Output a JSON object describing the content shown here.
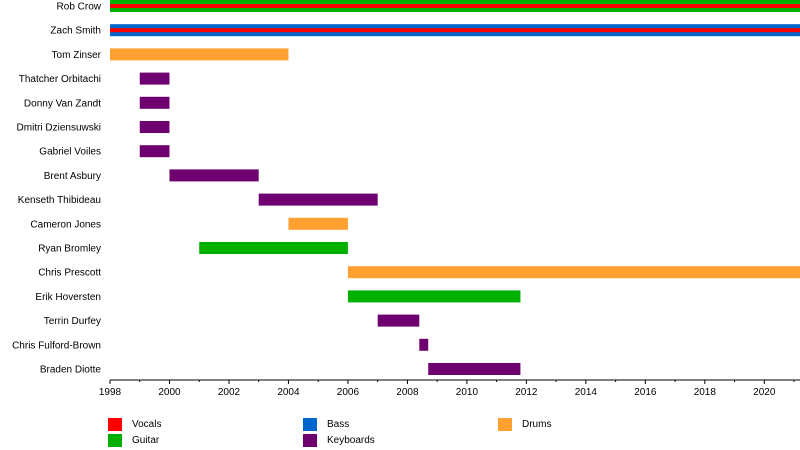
{
  "chart_data": {
    "type": "timeline",
    "title": "",
    "xlabel": "",
    "ylabel": "",
    "xlim": [
      1998,
      2021.2
    ],
    "xticks": [
      1998,
      2000,
      2002,
      2004,
      2006,
      2008,
      2010,
      2012,
      2014,
      2016,
      2018,
      2020
    ],
    "colors": {
      "Vocals": "#ff0000",
      "Bass": "#0066cc",
      "Drums": "#ffa030",
      "Guitar": "#00b000",
      "Keyboards": "#6f006f"
    },
    "members": [
      {
        "name": "Rob Crow",
        "roles": [
          {
            "role": "Guitar",
            "start": 1998,
            "end": 2021.2
          },
          {
            "role": "Vocals",
            "start": 1998,
            "end": 2021.2
          }
        ]
      },
      {
        "name": "Zach Smith",
        "roles": [
          {
            "role": "Bass",
            "start": 1998,
            "end": 2021.2
          },
          {
            "role": "Vocals",
            "start": 1998,
            "end": 2021.2
          }
        ]
      },
      {
        "name": "Tom Zinser",
        "roles": [
          {
            "role": "Drums",
            "start": 1998,
            "end": 2004
          }
        ]
      },
      {
        "name": "Thatcher Orbitachi",
        "roles": [
          {
            "role": "Keyboards",
            "start": 1999,
            "end": 2000
          }
        ]
      },
      {
        "name": "Donny Van Zandt",
        "roles": [
          {
            "role": "Keyboards",
            "start": 1999,
            "end": 2000
          }
        ]
      },
      {
        "name": "Dmitri Dziensuwski",
        "roles": [
          {
            "role": "Keyboards",
            "start": 1999,
            "end": 2000
          }
        ]
      },
      {
        "name": "Gabriel Voiles",
        "roles": [
          {
            "role": "Keyboards",
            "start": 1999,
            "end": 2000
          }
        ]
      },
      {
        "name": "Brent Asbury",
        "roles": [
          {
            "role": "Keyboards",
            "start": 2000,
            "end": 2003
          }
        ]
      },
      {
        "name": "Kenseth Thibideau",
        "roles": [
          {
            "role": "Keyboards",
            "start": 2003,
            "end": 2007
          }
        ]
      },
      {
        "name": "Cameron Jones",
        "roles": [
          {
            "role": "Drums",
            "start": 2004,
            "end": 2006
          }
        ]
      },
      {
        "name": "Ryan Bromley",
        "roles": [
          {
            "role": "Guitar",
            "start": 2001,
            "end": 2006
          }
        ]
      },
      {
        "name": "Chris Prescott",
        "roles": [
          {
            "role": "Drums",
            "start": 2006,
            "end": 2021.2
          }
        ]
      },
      {
        "name": "Erik Hoversten",
        "roles": [
          {
            "role": "Guitar",
            "start": 2006,
            "end": 2011.8
          }
        ]
      },
      {
        "name": "Terrin Durfey",
        "roles": [
          {
            "role": "Keyboards",
            "start": 2007,
            "end": 2008.4
          }
        ]
      },
      {
        "name": "Chris Fulford-Brown",
        "roles": [
          {
            "role": "Keyboards",
            "start": 2008.4,
            "end": 2008.7
          }
        ]
      },
      {
        "name": "Braden Diotte",
        "roles": [
          {
            "role": "Keyboards",
            "start": 2008.7,
            "end": 2011.8
          }
        ]
      }
    ],
    "legend": [
      "Vocals",
      "Bass",
      "Drums",
      "Guitar",
      "Keyboards"
    ],
    "legend_placement": "bottom"
  }
}
